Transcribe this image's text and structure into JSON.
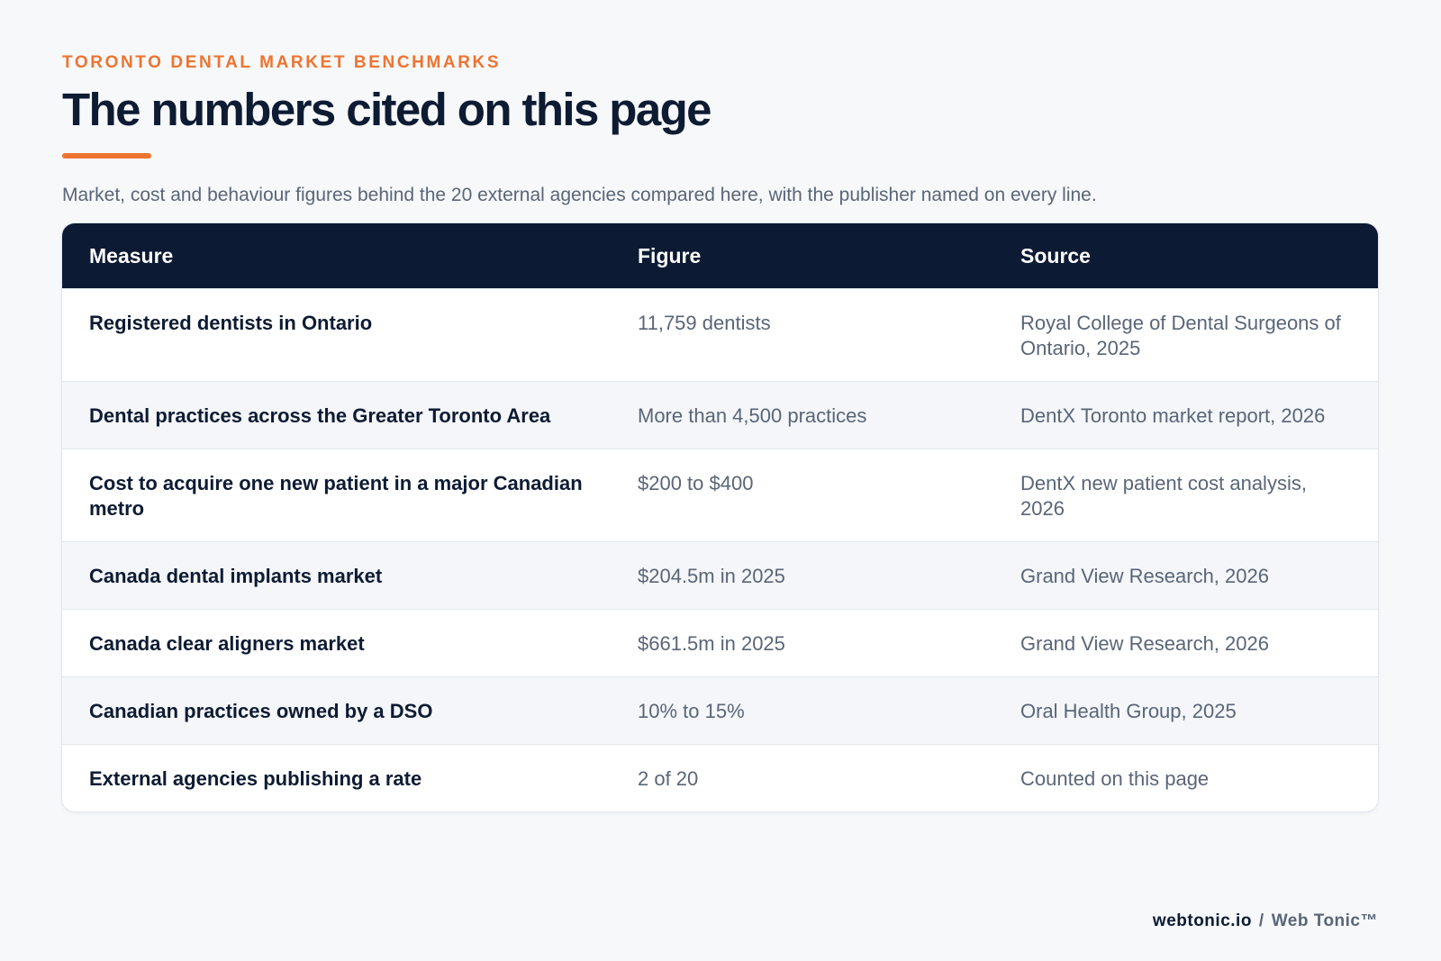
{
  "header": {
    "eyebrow": "TORONTO DENTAL MARKET BENCHMARKS",
    "title": "The numbers cited on this page",
    "subtitle": "Market, cost and behaviour figures behind the 20 external agencies compared here, with the publisher named on every line."
  },
  "table": {
    "columns": [
      "Measure",
      "Figure",
      "Source"
    ],
    "rows": [
      {
        "measure": "Registered dentists in Ontario",
        "figure": "11,759 dentists",
        "source": "Royal College of Dental Surgeons of Ontario, 2025"
      },
      {
        "measure": "Dental practices across the Greater Toronto Area",
        "figure": "More than 4,500 practices",
        "source": "DentX Toronto market report, 2026"
      },
      {
        "measure": "Cost to acquire one new patient in a major Canadian metro",
        "figure": "$200 to $400",
        "source": "DentX new patient cost analysis, 2026"
      },
      {
        "measure": "Canada dental implants market",
        "figure": "$204.5m in 2025",
        "source": "Grand View Research, 2026"
      },
      {
        "measure": "Canada clear aligners market",
        "figure": "$661.5m in 2025",
        "source": "Grand View Research, 2026"
      },
      {
        "measure": "Canadian practices owned by a DSO",
        "figure": "10% to 15%",
        "source": "Oral Health Group, 2025"
      },
      {
        "measure": "External agencies publishing a rate",
        "figure": "2 of 20",
        "source": "Counted on this page"
      }
    ]
  },
  "footer": {
    "domain": "webtonic.io",
    "separator": "/",
    "brand": "Web Tonic™"
  },
  "colors": {
    "accent": "#ee7430",
    "header_bg": "#0c1a33",
    "text_dark": "#0d1b33",
    "text_muted": "#5a6577"
  }
}
